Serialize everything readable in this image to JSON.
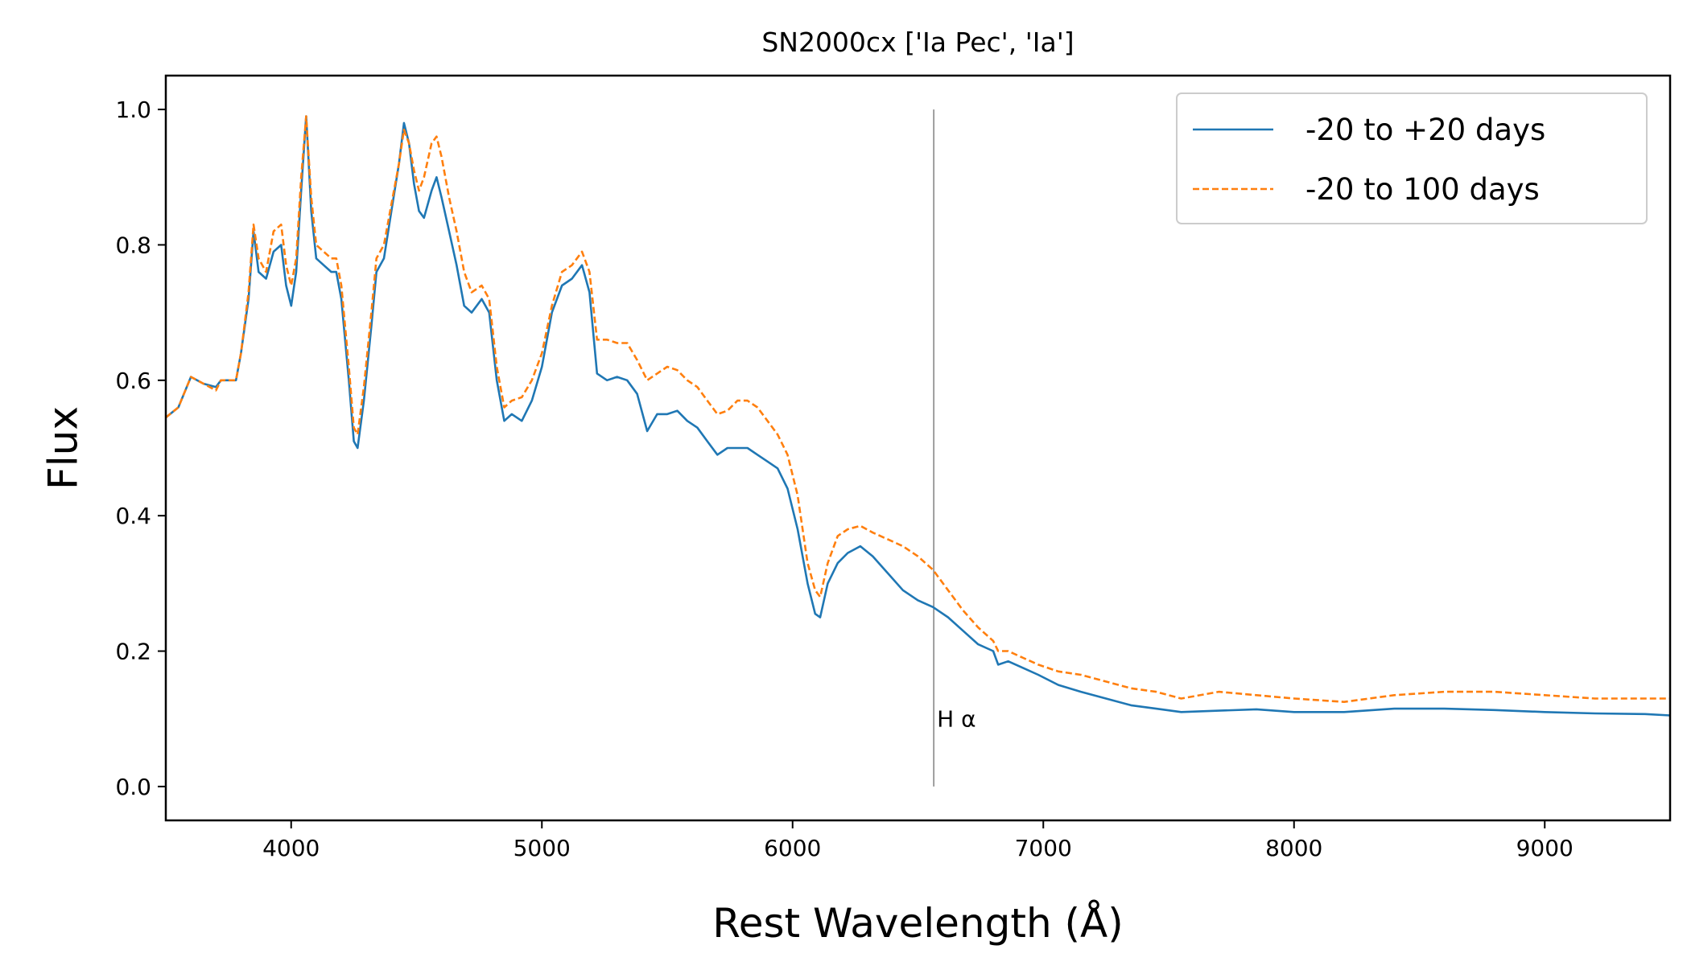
{
  "chart_data": {
    "type": "line",
    "title": "SN2000cx ['Ia Pec', 'Ia']",
    "xlabel": "Rest Wavelength (Å)",
    "ylabel": "Flux",
    "xlim": [
      3500,
      9500
    ],
    "ylim": [
      -0.05,
      1.05
    ],
    "x_ticks": [
      4000,
      5000,
      6000,
      7000,
      8000,
      9000
    ],
    "x_tick_labels": [
      "4000",
      "5000",
      "6000",
      "7000",
      "8000",
      "9000"
    ],
    "y_ticks": [
      0.0,
      0.2,
      0.4,
      0.6,
      0.8,
      1.0
    ],
    "y_tick_labels": [
      "0.0",
      "0.2",
      "0.4",
      "0.6",
      "0.8",
      "1.0"
    ],
    "grid": false,
    "legend_position": "top-right",
    "colors": {
      "series1": "#1f77b4",
      "series2": "#ff7f0e",
      "annotation_line": "#808080"
    },
    "annotations": [
      {
        "text": "H α",
        "x": 6563,
        "line_from": 0.0,
        "line_to": 1.0,
        "text_y": 0.1
      }
    ],
    "series": [
      {
        "name": "-20 to +20 days",
        "style": "solid",
        "points": [
          [
            3500,
            0.545
          ],
          [
            3550,
            0.56
          ],
          [
            3600,
            0.605
          ],
          [
            3650,
            0.595
          ],
          [
            3700,
            0.59
          ],
          [
            3720,
            0.6
          ],
          [
            3750,
            0.6
          ],
          [
            3780,
            0.6
          ],
          [
            3800,
            0.64
          ],
          [
            3830,
            0.72
          ],
          [
            3850,
            0.82
          ],
          [
            3870,
            0.76
          ],
          [
            3900,
            0.75
          ],
          [
            3930,
            0.79
          ],
          [
            3960,
            0.8
          ],
          [
            3980,
            0.74
          ],
          [
            4000,
            0.71
          ],
          [
            4020,
            0.76
          ],
          [
            4040,
            0.88
          ],
          [
            4060,
            0.99
          ],
          [
            4080,
            0.85
          ],
          [
            4100,
            0.78
          ],
          [
            4130,
            0.77
          ],
          [
            4160,
            0.76
          ],
          [
            4180,
            0.76
          ],
          [
            4200,
            0.72
          ],
          [
            4230,
            0.6
          ],
          [
            4250,
            0.51
          ],
          [
            4265,
            0.5
          ],
          [
            4290,
            0.57
          ],
          [
            4320,
            0.68
          ],
          [
            4340,
            0.76
          ],
          [
            4370,
            0.78
          ],
          [
            4400,
            0.85
          ],
          [
            4430,
            0.92
          ],
          [
            4450,
            0.98
          ],
          [
            4470,
            0.95
          ],
          [
            4490,
            0.89
          ],
          [
            4510,
            0.85
          ],
          [
            4530,
            0.84
          ],
          [
            4560,
            0.88
          ],
          [
            4580,
            0.9
          ],
          [
            4600,
            0.87
          ],
          [
            4630,
            0.82
          ],
          [
            4660,
            0.77
          ],
          [
            4690,
            0.71
          ],
          [
            4720,
            0.7
          ],
          [
            4760,
            0.72
          ],
          [
            4790,
            0.7
          ],
          [
            4820,
            0.6
          ],
          [
            4850,
            0.54
          ],
          [
            4880,
            0.55
          ],
          [
            4920,
            0.54
          ],
          [
            4960,
            0.57
          ],
          [
            5000,
            0.62
          ],
          [
            5040,
            0.7
          ],
          [
            5080,
            0.74
          ],
          [
            5120,
            0.75
          ],
          [
            5160,
            0.77
          ],
          [
            5190,
            0.73
          ],
          [
            5220,
            0.61
          ],
          [
            5260,
            0.6
          ],
          [
            5300,
            0.605
          ],
          [
            5340,
            0.6
          ],
          [
            5380,
            0.58
          ],
          [
            5420,
            0.525
          ],
          [
            5460,
            0.55
          ],
          [
            5500,
            0.55
          ],
          [
            5540,
            0.555
          ],
          [
            5580,
            0.54
          ],
          [
            5620,
            0.53
          ],
          [
            5660,
            0.51
          ],
          [
            5700,
            0.49
          ],
          [
            5740,
            0.5
          ],
          [
            5780,
            0.5
          ],
          [
            5820,
            0.5
          ],
          [
            5860,
            0.49
          ],
          [
            5900,
            0.48
          ],
          [
            5940,
            0.47
          ],
          [
            5980,
            0.44
          ],
          [
            6020,
            0.38
          ],
          [
            6060,
            0.3
          ],
          [
            6090,
            0.255
          ],
          [
            6110,
            0.25
          ],
          [
            6140,
            0.3
          ],
          [
            6180,
            0.33
          ],
          [
            6220,
            0.345
          ],
          [
            6270,
            0.355
          ],
          [
            6320,
            0.34
          ],
          [
            6380,
            0.315
          ],
          [
            6440,
            0.29
          ],
          [
            6500,
            0.275
          ],
          [
            6560,
            0.265
          ],
          [
            6620,
            0.25
          ],
          [
            6680,
            0.23
          ],
          [
            6740,
            0.21
          ],
          [
            6800,
            0.2
          ],
          [
            6820,
            0.18
          ],
          [
            6860,
            0.185
          ],
          [
            6920,
            0.175
          ],
          [
            6980,
            0.165
          ],
          [
            7060,
            0.15
          ],
          [
            7150,
            0.14
          ],
          [
            7250,
            0.13
          ],
          [
            7350,
            0.12
          ],
          [
            7450,
            0.115
          ],
          [
            7550,
            0.11
          ],
          [
            7700,
            0.112
          ],
          [
            7850,
            0.114
          ],
          [
            8000,
            0.11
          ],
          [
            8200,
            0.11
          ],
          [
            8400,
            0.115
          ],
          [
            8600,
            0.115
          ],
          [
            8800,
            0.113
          ],
          [
            9000,
            0.11
          ],
          [
            9200,
            0.108
          ],
          [
            9400,
            0.107
          ],
          [
            9500,
            0.105
          ]
        ]
      },
      {
        "name": "-20 to 100 days",
        "style": "dashed",
        "points": [
          [
            3500,
            0.545
          ],
          [
            3550,
            0.56
          ],
          [
            3600,
            0.605
          ],
          [
            3650,
            0.595
          ],
          [
            3700,
            0.585
          ],
          [
            3720,
            0.6
          ],
          [
            3750,
            0.6
          ],
          [
            3780,
            0.6
          ],
          [
            3800,
            0.64
          ],
          [
            3830,
            0.73
          ],
          [
            3850,
            0.83
          ],
          [
            3870,
            0.78
          ],
          [
            3900,
            0.76
          ],
          [
            3930,
            0.82
          ],
          [
            3960,
            0.83
          ],
          [
            3980,
            0.77
          ],
          [
            4000,
            0.74
          ],
          [
            4020,
            0.78
          ],
          [
            4040,
            0.9
          ],
          [
            4060,
            0.99
          ],
          [
            4080,
            0.87
          ],
          [
            4100,
            0.8
          ],
          [
            4130,
            0.79
          ],
          [
            4160,
            0.78
          ],
          [
            4180,
            0.78
          ],
          [
            4200,
            0.74
          ],
          [
            4230,
            0.62
          ],
          [
            4250,
            0.53
          ],
          [
            4265,
            0.52
          ],
          [
            4290,
            0.59
          ],
          [
            4320,
            0.7
          ],
          [
            4340,
            0.78
          ],
          [
            4370,
            0.8
          ],
          [
            4400,
            0.86
          ],
          [
            4430,
            0.92
          ],
          [
            4450,
            0.97
          ],
          [
            4470,
            0.95
          ],
          [
            4490,
            0.91
          ],
          [
            4510,
            0.88
          ],
          [
            4530,
            0.9
          ],
          [
            4560,
            0.95
          ],
          [
            4580,
            0.96
          ],
          [
            4600,
            0.93
          ],
          [
            4630,
            0.87
          ],
          [
            4660,
            0.82
          ],
          [
            4690,
            0.76
          ],
          [
            4720,
            0.73
          ],
          [
            4760,
            0.74
          ],
          [
            4790,
            0.72
          ],
          [
            4820,
            0.62
          ],
          [
            4850,
            0.56
          ],
          [
            4880,
            0.57
          ],
          [
            4920,
            0.575
          ],
          [
            4960,
            0.6
          ],
          [
            5000,
            0.64
          ],
          [
            5040,
            0.71
          ],
          [
            5080,
            0.76
          ],
          [
            5120,
            0.77
          ],
          [
            5160,
            0.79
          ],
          [
            5190,
            0.76
          ],
          [
            5220,
            0.66
          ],
          [
            5260,
            0.66
          ],
          [
            5300,
            0.655
          ],
          [
            5340,
            0.655
          ],
          [
            5380,
            0.63
          ],
          [
            5420,
            0.6
          ],
          [
            5460,
            0.61
          ],
          [
            5500,
            0.62
          ],
          [
            5540,
            0.615
          ],
          [
            5580,
            0.6
          ],
          [
            5620,
            0.59
          ],
          [
            5660,
            0.57
          ],
          [
            5700,
            0.55
          ],
          [
            5740,
            0.555
          ],
          [
            5780,
            0.57
          ],
          [
            5820,
            0.57
          ],
          [
            5860,
            0.56
          ],
          [
            5900,
            0.54
          ],
          [
            5940,
            0.52
          ],
          [
            5980,
            0.49
          ],
          [
            6020,
            0.43
          ],
          [
            6060,
            0.33
          ],
          [
            6090,
            0.29
          ],
          [
            6110,
            0.28
          ],
          [
            6140,
            0.33
          ],
          [
            6180,
            0.37
          ],
          [
            6220,
            0.38
          ],
          [
            6270,
            0.385
          ],
          [
            6320,
            0.375
          ],
          [
            6380,
            0.365
          ],
          [
            6440,
            0.355
          ],
          [
            6500,
            0.34
          ],
          [
            6560,
            0.32
          ],
          [
            6620,
            0.29
          ],
          [
            6680,
            0.26
          ],
          [
            6740,
            0.235
          ],
          [
            6800,
            0.215
          ],
          [
            6820,
            0.2
          ],
          [
            6860,
            0.2
          ],
          [
            6920,
            0.19
          ],
          [
            6980,
            0.18
          ],
          [
            7060,
            0.17
          ],
          [
            7150,
            0.165
          ],
          [
            7250,
            0.155
          ],
          [
            7350,
            0.145
          ],
          [
            7450,
            0.14
          ],
          [
            7550,
            0.13
          ],
          [
            7700,
            0.14
          ],
          [
            7850,
            0.135
          ],
          [
            8000,
            0.13
          ],
          [
            8200,
            0.125
          ],
          [
            8400,
            0.135
          ],
          [
            8600,
            0.14
          ],
          [
            8800,
            0.14
          ],
          [
            9000,
            0.135
          ],
          [
            9200,
            0.13
          ],
          [
            9400,
            0.13
          ],
          [
            9500,
            0.13
          ]
        ]
      }
    ]
  }
}
